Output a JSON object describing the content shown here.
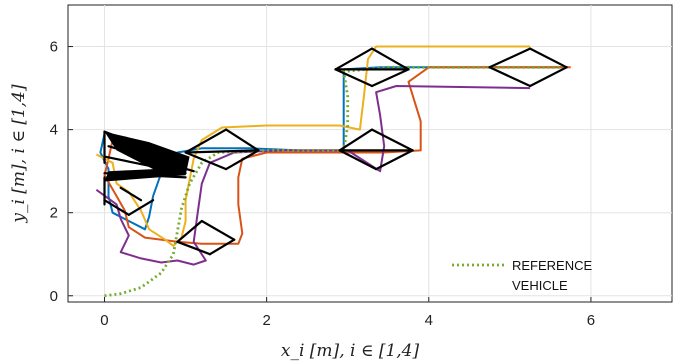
{
  "chart_data": {
    "type": "line",
    "title": "",
    "xlabel": "x_i [m],    i ∈ [1,4]",
    "ylabel": "y_i [m],    i ∈ [1,4]",
    "xlim": [
      -0.45,
      7.0
    ],
    "ylim": [
      -0.15,
      7.0
    ],
    "x_ticks": [
      0,
      2,
      4,
      6
    ],
    "y_ticks": [
      0,
      2,
      4,
      6
    ],
    "grid": true,
    "legend": {
      "placement": "bottom-right",
      "entries": [
        {
          "label": "REFERENCE",
          "color": "#77ac30",
          "style": "dotted"
        },
        {
          "label": "VEHICLE",
          "color": "#000000",
          "style": "solid"
        }
      ]
    },
    "series": [
      {
        "color": "#0072bd",
        "points": [
          [
            0.0,
            3.9
          ],
          [
            -0.05,
            3.45
          ],
          [
            0.05,
            3.05
          ],
          [
            0.05,
            2.4
          ],
          [
            0.1,
            2.0
          ],
          [
            0.3,
            1.8
          ],
          [
            0.5,
            1.6
          ],
          [
            0.55,
            1.9
          ],
          [
            0.6,
            2.4
          ],
          [
            0.7,
            2.95
          ],
          [
            0.9,
            3.45
          ],
          [
            1.2,
            3.55
          ],
          [
            1.8,
            3.55
          ],
          [
            2.4,
            3.5
          ],
          [
            2.95,
            3.5
          ],
          [
            2.95,
            4.6
          ],
          [
            2.95,
            5.45
          ],
          [
            3.4,
            5.5
          ],
          [
            4.0,
            5.5
          ],
          [
            5.3,
            5.5
          ],
          [
            5.7,
            5.5
          ]
        ]
      },
      {
        "color": "#d95319",
        "points": [
          [
            0.1,
            3.75
          ],
          [
            0.05,
            3.3
          ],
          [
            0.0,
            2.9
          ],
          [
            0.15,
            2.4
          ],
          [
            0.25,
            2.05
          ],
          [
            0.3,
            1.65
          ],
          [
            0.5,
            1.4
          ],
          [
            0.9,
            1.3
          ],
          [
            1.2,
            1.25
          ],
          [
            1.65,
            1.25
          ],
          [
            1.7,
            1.5
          ],
          [
            1.65,
            2.2
          ],
          [
            1.65,
            2.85
          ],
          [
            1.7,
            3.3
          ],
          [
            2.0,
            3.45
          ],
          [
            2.6,
            3.45
          ],
          [
            3.45,
            3.45
          ],
          [
            3.9,
            3.5
          ],
          [
            3.9,
            4.2
          ],
          [
            3.75,
            5.15
          ],
          [
            4.0,
            5.5
          ],
          [
            5.3,
            5.5
          ],
          [
            5.75,
            5.5
          ]
        ]
      },
      {
        "color": "#edb120",
        "points": [
          [
            -0.1,
            3.4
          ],
          [
            0.1,
            3.2
          ],
          [
            0.15,
            2.7
          ],
          [
            0.3,
            2.5
          ],
          [
            0.45,
            2.05
          ],
          [
            0.55,
            1.6
          ],
          [
            0.75,
            1.35
          ],
          [
            0.85,
            1.2
          ],
          [
            0.95,
            1.4
          ],
          [
            1.0,
            1.8
          ],
          [
            1.0,
            2.3
          ],
          [
            1.05,
            2.8
          ],
          [
            1.1,
            3.3
          ],
          [
            1.2,
            3.75
          ],
          [
            1.45,
            4.05
          ],
          [
            2.0,
            4.1
          ],
          [
            2.9,
            4.1
          ],
          [
            3.15,
            4.0
          ],
          [
            3.2,
            4.8
          ],
          [
            3.25,
            5.7
          ],
          [
            3.35,
            6.0
          ],
          [
            4.3,
            6.0
          ],
          [
            5.25,
            6.0
          ]
        ]
      },
      {
        "color": "#7e2f8e",
        "points": [
          [
            -0.1,
            2.55
          ],
          [
            0.15,
            2.2
          ],
          [
            0.2,
            1.85
          ],
          [
            0.3,
            1.45
          ],
          [
            0.2,
            1.05
          ],
          [
            0.45,
            0.9
          ],
          [
            0.7,
            0.8
          ],
          [
            0.9,
            0.85
          ],
          [
            1.1,
            0.75
          ],
          [
            1.25,
            0.85
          ],
          [
            1.1,
            1.3
          ],
          [
            1.15,
            2.0
          ],
          [
            1.2,
            2.7
          ],
          [
            1.3,
            3.2
          ],
          [
            1.6,
            3.45
          ],
          [
            2.2,
            3.5
          ],
          [
            3.0,
            3.5
          ],
          [
            3.4,
            3.0
          ],
          [
            3.45,
            3.6
          ],
          [
            3.4,
            4.35
          ],
          [
            3.35,
            4.9
          ],
          [
            3.6,
            5.05
          ],
          [
            5.25,
            5.0
          ]
        ]
      },
      {
        "color": "#77ac30",
        "dotted": true,
        "points": [
          [
            0.0,
            0.0
          ],
          [
            0.2,
            0.05
          ],
          [
            0.45,
            0.2
          ],
          [
            0.7,
            0.55
          ],
          [
            0.85,
            1.0
          ],
          [
            0.9,
            1.55
          ],
          [
            0.95,
            2.1
          ],
          [
            1.05,
            2.7
          ],
          [
            1.2,
            3.2
          ],
          [
            1.4,
            3.45
          ],
          [
            2.0,
            3.5
          ],
          [
            2.95,
            3.5
          ],
          [
            3.0,
            4.1
          ],
          [
            3.0,
            4.8
          ],
          [
            2.95,
            5.4
          ],
          [
            3.5,
            5.5
          ],
          [
            4.5,
            5.5
          ],
          [
            5.7,
            5.5
          ]
        ]
      },
      {
        "color": "#000000",
        "black": true,
        "segments": [
          [
            [
              0.0,
              3.95
            ],
            [
              0.0,
              3.2
            ]
          ],
          [
            [
              0.0,
              3.95
            ],
            [
              1.0,
              3.2
            ]
          ],
          [
            [
              0.05,
              3.6
            ],
            [
              1.1,
              3.0
            ]
          ],
          [
            [
              0.0,
              3.35
            ],
            [
              1.0,
              2.95
            ]
          ],
          [
            [
              0.0,
              2.95
            ],
            [
              1.0,
              2.85
            ]
          ],
          [
            [
              0.0,
              2.8
            ],
            [
              0.95,
              2.95
            ]
          ],
          [
            [
              0.0,
              2.85
            ],
            [
              0.0,
              2.2
            ]
          ],
          [
            [
              0.0,
              2.3
            ],
            [
              0.3,
              1.95
            ]
          ],
          [
            [
              0.3,
              1.95
            ],
            [
              0.6,
              2.3
            ]
          ],
          [
            [
              0.2,
              2.6
            ],
            [
              0.45,
              2.3
            ]
          ],
          [
            [
              1.2,
              1.8
            ],
            [
              1.6,
              1.35
            ]
          ],
          [
            [
              1.6,
              1.35
            ],
            [
              1.3,
              1.0
            ]
          ],
          [
            [
              1.3,
              1.0
            ],
            [
              0.9,
              1.3
            ]
          ],
          [
            [
              0.9,
              1.3
            ],
            [
              1.2,
              1.8
            ]
          ],
          [
            [
              1.0,
              3.45
            ],
            [
              1.5,
              4.0
            ]
          ],
          [
            [
              1.5,
              4.0
            ],
            [
              1.9,
              3.5
            ]
          ],
          [
            [
              1.9,
              3.5
            ],
            [
              1.5,
              3.05
            ]
          ],
          [
            [
              1.5,
              3.05
            ],
            [
              1.0,
              3.45
            ]
          ],
          [
            [
              1.0,
              3.45
            ],
            [
              1.9,
              3.5
            ]
          ],
          [
            [
              2.9,
              3.5
            ],
            [
              3.3,
              4.0
            ]
          ],
          [
            [
              3.3,
              4.0
            ],
            [
              3.8,
              3.5
            ]
          ],
          [
            [
              3.8,
              3.5
            ],
            [
              3.35,
              3.05
            ]
          ],
          [
            [
              3.35,
              3.05
            ],
            [
              2.9,
              3.5
            ]
          ],
          [
            [
              2.9,
              3.5
            ],
            [
              3.8,
              3.5
            ]
          ],
          [
            [
              2.85,
              5.45
            ],
            [
              3.3,
              5.95
            ]
          ],
          [
            [
              3.3,
              5.95
            ],
            [
              3.75,
              5.45
            ]
          ],
          [
            [
              3.75,
              5.45
            ],
            [
              3.3,
              5.05
            ]
          ],
          [
            [
              3.3,
              5.05
            ],
            [
              2.85,
              5.45
            ]
          ],
          [
            [
              2.85,
              5.45
            ],
            [
              3.75,
              5.45
            ]
          ],
          [
            [
              4.75,
              5.5
            ],
            [
              5.25,
              5.95
            ]
          ],
          [
            [
              5.25,
              5.95
            ],
            [
              5.7,
              5.5
            ]
          ],
          [
            [
              5.7,
              5.5
            ],
            [
              5.25,
              5.05
            ]
          ],
          [
            [
              5.25,
              5.05
            ],
            [
              4.75,
              5.5
            ]
          ]
        ]
      }
    ]
  }
}
